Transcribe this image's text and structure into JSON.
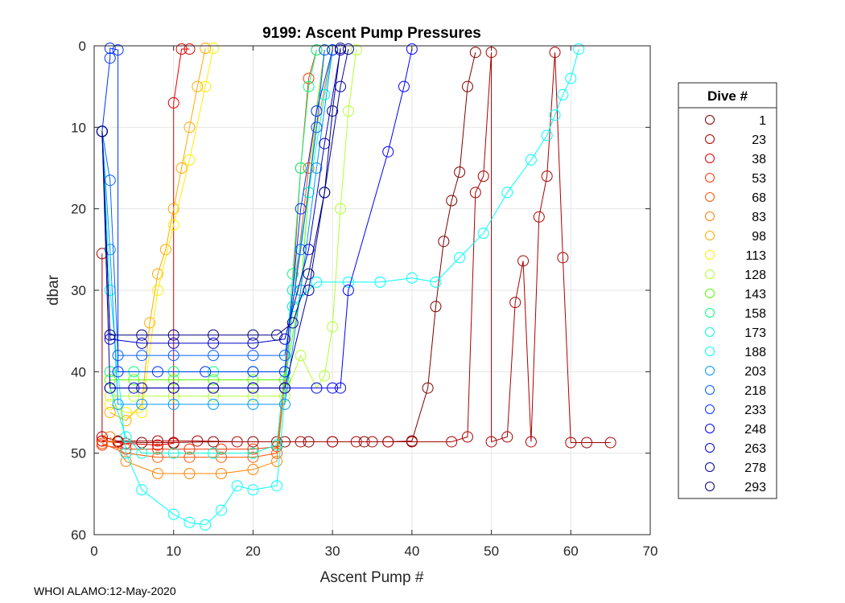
{
  "chart_data": {
    "type": "line",
    "title": "9199: Ascent Pump Pressures",
    "xlabel": "Ascent Pump #",
    "ylabel": "dbar",
    "xlim": [
      0,
      70
    ],
    "ylim": [
      0,
      60
    ],
    "y_reversed": true,
    "xticks": [
      0,
      10,
      20,
      30,
      40,
      50,
      60,
      70
    ],
    "yticks": [
      0,
      10,
      20,
      30,
      40,
      50,
      60
    ],
    "grid": true,
    "marker": "circle",
    "legend": {
      "title": "Dive #",
      "placement": "right-outside"
    },
    "series": [
      {
        "name": "1",
        "color": "#7f0000",
        "points": [
          [
            1,
            48.5
          ],
          [
            3,
            48.6
          ],
          [
            6,
            48.7
          ],
          [
            10,
            48.7
          ],
          [
            15,
            48.6
          ],
          [
            20,
            48.6
          ],
          [
            24,
            48.6
          ],
          [
            27,
            48.6
          ],
          [
            30,
            48.6
          ],
          [
            34,
            48.6
          ],
          [
            37,
            48.6
          ],
          [
            40,
            48.5
          ],
          [
            42,
            42
          ],
          [
            43,
            32
          ],
          [
            44,
            24
          ],
          [
            45,
            19
          ],
          [
            46,
            15.5
          ],
          [
            47,
            5
          ],
          [
            48,
            0.8
          ]
        ]
      },
      {
        "name": "23",
        "color": "#aa0000",
        "points": [
          [
            1,
            25.5
          ],
          [
            1,
            48
          ],
          [
            3,
            48.5
          ],
          [
            8,
            48.5
          ],
          [
            13,
            48.5
          ],
          [
            18,
            48.6
          ],
          [
            23,
            48.6
          ],
          [
            26,
            48.6
          ],
          [
            30,
            48.6
          ],
          [
            33,
            48.6
          ],
          [
            35,
            48.6
          ],
          [
            37,
            48.6
          ],
          [
            40,
            48.6
          ],
          [
            45,
            48.6
          ],
          [
            47,
            48
          ],
          [
            48,
            18
          ],
          [
            49,
            16
          ],
          [
            50,
            0.8
          ],
          [
            50,
            48.6
          ],
          [
            52,
            48
          ],
          [
            53,
            31.5
          ],
          [
            54,
            26.4
          ],
          [
            55,
            48.6
          ],
          [
            56,
            21
          ],
          [
            57,
            16
          ],
          [
            58,
            0.8
          ],
          [
            59,
            26
          ],
          [
            60,
            48.7
          ],
          [
            62,
            48.7
          ],
          [
            65,
            48.7
          ]
        ]
      },
      {
        "name": "38",
        "color": "#e60000",
        "points": [
          [
            1,
            48.5
          ],
          [
            4,
            48.8
          ],
          [
            8,
            49
          ],
          [
            10,
            48.8
          ],
          [
            10,
            7
          ],
          [
            11,
            0.4
          ],
          [
            12,
            0.4
          ]
        ]
      },
      {
        "name": "53",
        "color": "#ff3300",
        "points": [
          [
            1,
            49
          ],
          [
            4,
            49.5
          ],
          [
            8,
            49.5
          ],
          [
            12,
            49.5
          ],
          [
            16,
            49.5
          ],
          [
            20,
            49.5
          ],
          [
            23,
            49.2
          ],
          [
            25,
            30
          ],
          [
            26,
            15
          ],
          [
            27,
            4
          ],
          [
            28,
            0.5
          ]
        ]
      },
      {
        "name": "68",
        "color": "#ff5500",
        "points": [
          [
            1,
            48.8
          ],
          [
            4,
            50
          ],
          [
            8,
            50.5
          ],
          [
            12,
            50.5
          ],
          [
            16,
            50.5
          ],
          [
            20,
            50.5
          ],
          [
            23,
            50
          ],
          [
            25,
            32
          ],
          [
            27,
            15
          ],
          [
            29,
            0.5
          ]
        ]
      },
      {
        "name": "83",
        "color": "#ff8000",
        "points": [
          [
            2,
            48
          ],
          [
            4,
            51
          ],
          [
            8,
            52.5
          ],
          [
            12,
            52.5
          ],
          [
            16,
            52.5
          ],
          [
            20,
            52
          ],
          [
            23,
            51
          ],
          [
            25,
            32
          ],
          [
            28,
            10
          ],
          [
            30,
            0.5
          ]
        ]
      },
      {
        "name": "98",
        "color": "#ffaa00",
        "points": [
          [
            2,
            45
          ],
          [
            4,
            46
          ],
          [
            6,
            44
          ],
          [
            7,
            34
          ],
          [
            8,
            28
          ],
          [
            9,
            25
          ],
          [
            10,
            20
          ],
          [
            11,
            15
          ],
          [
            12,
            10
          ],
          [
            13,
            5
          ],
          [
            14,
            0.3
          ]
        ]
      },
      {
        "name": "113",
        "color": "#ffee00",
        "points": [
          [
            2,
            44
          ],
          [
            4,
            45
          ],
          [
            6,
            45
          ],
          [
            8,
            30
          ],
          [
            10,
            22
          ],
          [
            12,
            14
          ],
          [
            14,
            5
          ],
          [
            15,
            0.3
          ]
        ]
      },
      {
        "name": "128",
        "color": "#b3ff33",
        "points": [
          [
            2,
            43
          ],
          [
            5,
            43
          ],
          [
            10,
            43
          ],
          [
            15,
            43
          ],
          [
            20,
            43
          ],
          [
            24,
            43
          ],
          [
            26,
            38
          ],
          [
            28,
            42
          ],
          [
            29,
            40.5
          ],
          [
            30,
            34.5
          ],
          [
            31,
            20
          ],
          [
            32,
            8
          ],
          [
            33,
            0.5
          ]
        ]
      },
      {
        "name": "143",
        "color": "#55ff00",
        "points": [
          [
            2,
            41
          ],
          [
            5,
            41
          ],
          [
            10,
            41
          ],
          [
            15,
            41
          ],
          [
            20,
            41
          ],
          [
            24,
            41
          ],
          [
            26,
            30
          ],
          [
            27,
            18
          ],
          [
            28,
            8
          ],
          [
            29,
            0.5
          ]
        ]
      },
      {
        "name": "158",
        "color": "#00ff80",
        "points": [
          [
            2,
            40
          ],
          [
            5,
            40
          ],
          [
            10,
            40
          ],
          [
            15,
            40
          ],
          [
            20,
            40
          ],
          [
            24,
            40
          ],
          [
            25,
            28
          ],
          [
            26,
            15
          ],
          [
            27,
            5
          ],
          [
            28,
            0.5
          ]
        ]
      },
      {
        "name": "173",
        "color": "#00ffd5",
        "points": [
          [
            2,
            42
          ],
          [
            4,
            48
          ],
          [
            6,
            50
          ],
          [
            10,
            50
          ],
          [
            15,
            50
          ],
          [
            20,
            50
          ],
          [
            23,
            49
          ],
          [
            25,
            30
          ],
          [
            27,
            18
          ],
          [
            29,
            6
          ],
          [
            30,
            0.5
          ]
        ]
      },
      {
        "name": "188",
        "color": "#00ffff",
        "points": [
          [
            1,
            10.5
          ],
          [
            2,
            30
          ],
          [
            4,
            50
          ],
          [
            6,
            54.5
          ],
          [
            10,
            57.5
          ],
          [
            12,
            58.5
          ],
          [
            14,
            58.8
          ],
          [
            16,
            57
          ],
          [
            18,
            54
          ],
          [
            20,
            54.5
          ],
          [
            23,
            54
          ],
          [
            25,
            32
          ],
          [
            28,
            29
          ],
          [
            32,
            29
          ],
          [
            36,
            29
          ],
          [
            40,
            28.5
          ],
          [
            43,
            29
          ],
          [
            46,
            26
          ],
          [
            49,
            23
          ],
          [
            52,
            18
          ],
          [
            55,
            14
          ],
          [
            57,
            11
          ],
          [
            58,
            8.5
          ],
          [
            59,
            6
          ],
          [
            60,
            4
          ],
          [
            61,
            0.4
          ]
        ]
      },
      {
        "name": "203",
        "color": "#0099ff",
        "points": [
          [
            1,
            10.5
          ],
          [
            2,
            25
          ],
          [
            3,
            44
          ],
          [
            6,
            44
          ],
          [
            10,
            44
          ],
          [
            15,
            44
          ],
          [
            20,
            44
          ],
          [
            24,
            44
          ],
          [
            26,
            30
          ],
          [
            28,
            15
          ],
          [
            30,
            0.5
          ]
        ]
      },
      {
        "name": "218",
        "color": "#0060ff",
        "points": [
          [
            1,
            10.5
          ],
          [
            2,
            16.5
          ],
          [
            3,
            38
          ],
          [
            6,
            38
          ],
          [
            10,
            38
          ],
          [
            15,
            38
          ],
          [
            20,
            38
          ],
          [
            24,
            38
          ],
          [
            26,
            25
          ],
          [
            28,
            10
          ],
          [
            29,
            0.5
          ]
        ]
      },
      {
        "name": "233",
        "color": "#0030ff",
        "points": [
          [
            1,
            10.5
          ],
          [
            2,
            1.5
          ],
          [
            2,
            0.3
          ],
          [
            3,
            0.5
          ],
          [
            3,
            40
          ],
          [
            8,
            40
          ],
          [
            14,
            40
          ],
          [
            20,
            40
          ],
          [
            24,
            40
          ],
          [
            26,
            20
          ],
          [
            28,
            8
          ],
          [
            30,
            0.5
          ]
        ]
      },
      {
        "name": "248",
        "color": "#0000ff",
        "points": [
          [
            2,
            42
          ],
          [
            5,
            42
          ],
          [
            10,
            42
          ],
          [
            15,
            42
          ],
          [
            20,
            42
          ],
          [
            24,
            42
          ],
          [
            28,
            42
          ],
          [
            30,
            42
          ],
          [
            31,
            42
          ],
          [
            32,
            30
          ],
          [
            37,
            13
          ],
          [
            39,
            5
          ],
          [
            40,
            0.4
          ]
        ]
      },
      {
        "name": "263",
        "color": "#0000cc",
        "points": [
          [
            1,
            10.5
          ],
          [
            2,
            36
          ],
          [
            6,
            36.5
          ],
          [
            10,
            36.5
          ],
          [
            15,
            36.5
          ],
          [
            20,
            36.5
          ],
          [
            24,
            36
          ],
          [
            27,
            25
          ],
          [
            29,
            12
          ],
          [
            31,
            0.5
          ]
        ]
      },
      {
        "name": "278",
        "color": "#000099",
        "points": [
          [
            1,
            10.5
          ],
          [
            2,
            42
          ],
          [
            6,
            42
          ],
          [
            10,
            42
          ],
          [
            15,
            42
          ],
          [
            20,
            42
          ],
          [
            24,
            42
          ],
          [
            27,
            30
          ],
          [
            29,
            18
          ],
          [
            31,
            5
          ],
          [
            32,
            0.4
          ]
        ]
      },
      {
        "name": "293",
        "color": "#000080",
        "points": [
          [
            1,
            10.5
          ],
          [
            2,
            35.5
          ],
          [
            6,
            35.5
          ],
          [
            10,
            35.5
          ],
          [
            15,
            35.5
          ],
          [
            20,
            35.5
          ],
          [
            23,
            35.5
          ],
          [
            25,
            34
          ],
          [
            27,
            28
          ],
          [
            29,
            18
          ],
          [
            30,
            8
          ],
          [
            31,
            0.3
          ]
        ]
      }
    ]
  },
  "footer": "WHOI ALAMO:12-May-2020"
}
